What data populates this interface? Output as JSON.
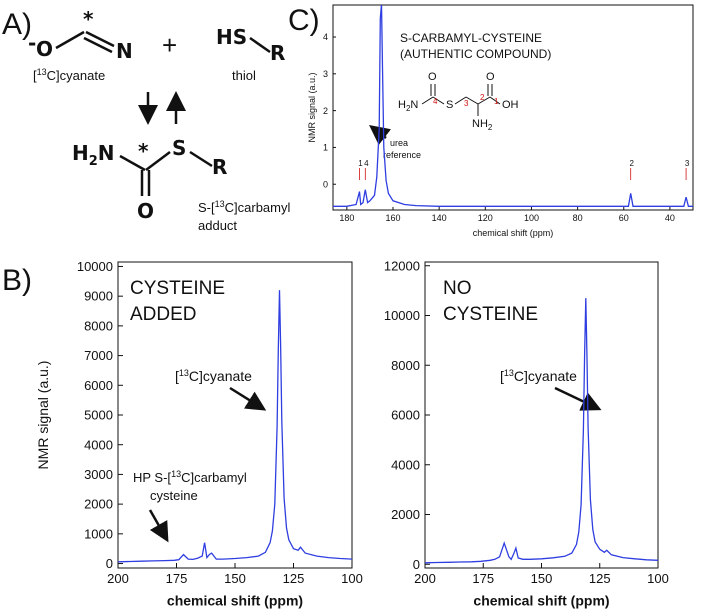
{
  "panels": {
    "a": "A)",
    "b": "B)",
    "c": "C)"
  },
  "scheme": {
    "cyanate_o": "O",
    "cyanate_charge": "-",
    "cyanate_n": "N",
    "star1": "*",
    "plus": "+",
    "thiol_hs": "HS",
    "thiol_r": "R",
    "cyanate_label": {
      "pre": "[",
      "sup": "13",
      "post": "C]cyanate"
    },
    "thiol_label": "thiol",
    "adduct_h2n": {
      "pre": "H",
      "sub": "2",
      "post": "N"
    },
    "star2": "*",
    "adduct_s": "S",
    "adduct_r": "R",
    "adduct_o": "O",
    "adduct_label1": {
      "pre": "S-[",
      "sup": "13",
      "post": "C]carbamyl"
    },
    "adduct_label2": "adduct"
  },
  "chart_data": [
    {
      "type": "line",
      "xlabel": "chemical shift (ppm)",
      "ylabel": "NMR signal (a.u.)",
      "xlim": [
        200,
        100
      ],
      "ylim": [
        -150,
        10150
      ],
      "xticks": [
        200,
        175,
        150,
        125,
        100
      ],
      "yticks": [
        0,
        1000,
        2000,
        3000,
        4000,
        5000,
        6000,
        7000,
        8000,
        9000,
        10000
      ],
      "annotations": {
        "line1": "CYSTEINE",
        "line2": "ADDED",
        "peak": {
          "pre": "[",
          "sup": "13",
          "post": "C]cyanate"
        },
        "hp1": {
          "pre": "HP S-[",
          "sup": "13",
          "post": "C]carbamyl"
        },
        "hp2": "cysteine"
      },
      "x": [
        200,
        195,
        190,
        185,
        180,
        176,
        174,
        172,
        170,
        168,
        166,
        164,
        163,
        162,
        161,
        160,
        158,
        155,
        150,
        145,
        140,
        137,
        135,
        134,
        133,
        132,
        131.5,
        131,
        130.5,
        130,
        129,
        128,
        127,
        125,
        123,
        122,
        120,
        115,
        110,
        105,
        100
      ],
      "series": [
        {
          "color": "#2f3ee0",
          "values": [
            60,
            70,
            80,
            90,
            100,
            110,
            130,
            300,
            150,
            140,
            180,
            250,
            700,
            200,
            300,
            350,
            150,
            150,
            170,
            200,
            250,
            380,
            700,
            1100,
            2000,
            4600,
            7200,
            9200,
            7400,
            4800,
            2200,
            1200,
            800,
            500,
            450,
            550,
            350,
            250,
            200,
            170,
            150
          ]
        }
      ]
    },
    {
      "type": "line",
      "xlabel": "chemical shift (ppm)",
      "xlim": [
        200,
        100
      ],
      "ylim": [
        -150,
        12150
      ],
      "xticks": [
        200,
        175,
        150,
        125,
        100
      ],
      "yticks": [
        0,
        2000,
        4000,
        6000,
        8000,
        10000,
        12000
      ],
      "annotations": {
        "line1": "NO",
        "line2": "CYSTEINE",
        "peak": {
          "pre": "[",
          "sup": "13",
          "post": "C]cyanate"
        }
      },
      "x": [
        200,
        195,
        190,
        185,
        180,
        176,
        174,
        172,
        170,
        168,
        166,
        164,
        163,
        162,
        161,
        160,
        158,
        155,
        150,
        145,
        140,
        137,
        135,
        134,
        133,
        132,
        131.5,
        131,
        130.5,
        130,
        129,
        128,
        127,
        125,
        123,
        122,
        120,
        115,
        110,
        105,
        100
      ],
      "series": [
        {
          "color": "#2f3ee0",
          "values": [
            60,
            70,
            80,
            90,
            100,
            120,
            140,
            160,
            200,
            300,
            850,
            300,
            200,
            400,
            650,
            250,
            200,
            200,
            220,
            260,
            320,
            450,
            800,
            1300,
            2400,
            5400,
            8400,
            10700,
            8500,
            5500,
            2600,
            1400,
            900,
            600,
            480,
            560,
            380,
            270,
            220,
            180,
            160
          ]
        }
      ]
    },
    {
      "type": "line",
      "xlabel": "chemical shift (ppm)",
      "ylabel": "NMR signal (a.u.)",
      "xlim": [
        186,
        30
      ],
      "ylim": [
        -0.7,
        4.87
      ],
      "xticks": [
        180,
        160,
        140,
        120,
        100,
        80,
        60,
        40
      ],
      "yticks": [
        0,
        1,
        2,
        3,
        4
      ],
      "annotations": {
        "title1": "S-CARBAMYL-CYSTEINE",
        "title2": "(AUTHENTIC COMPOUND)",
        "ref1": "urea",
        "ref2": "reference",
        "mol": {
          "o1": "O",
          "h2n": {
            "pre": "H",
            "sub": "2",
            "post": "N"
          },
          "s": "S",
          "o2": "O",
          "oh": "OH",
          "nh2": {
            "pre": "NH",
            "sub": "2"
          },
          "n1": "1",
          "n2": "2",
          "n3": "3",
          "n4": "4"
        }
      },
      "peak_labels": [
        {
          "x": 174.5,
          "label": "1"
        },
        {
          "x": 172,
          "label": "4"
        },
        {
          "x": 57,
          "label": "2"
        },
        {
          "x": 33,
          "label": "3"
        }
      ],
      "x": [
        186,
        180,
        176,
        174.5,
        174,
        173,
        172,
        171,
        170,
        168,
        167,
        166,
        165.5,
        165,
        164.5,
        164,
        163,
        162,
        160,
        155,
        150,
        140,
        120,
        100,
        80,
        60,
        58,
        57,
        56,
        50,
        40,
        34,
        33,
        32,
        30
      ],
      "series": [
        {
          "color": "#2f3ee0",
          "values": [
            -0.6,
            -0.6,
            -0.55,
            -0.2,
            -0.55,
            -0.5,
            -0.15,
            -0.5,
            -0.45,
            -0.3,
            0.2,
            1.5,
            4.5,
            4.9,
            3.0,
            1.0,
            0.1,
            -0.25,
            -0.45,
            -0.55,
            -0.58,
            -0.6,
            -0.6,
            -0.6,
            -0.6,
            -0.6,
            -0.6,
            -0.25,
            -0.6,
            -0.6,
            -0.6,
            -0.6,
            -0.35,
            -0.6,
            -0.6
          ]
        }
      ]
    }
  ]
}
